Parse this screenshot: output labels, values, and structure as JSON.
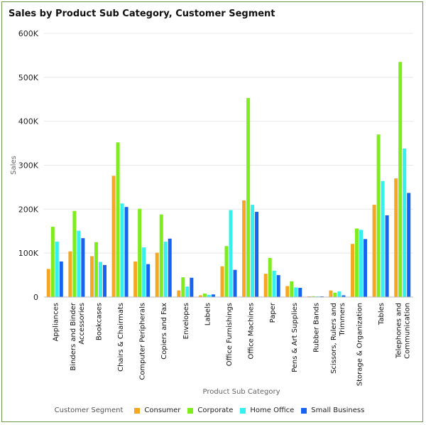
{
  "chart_data": {
    "type": "bar",
    "title": "Sales by Product Sub Category, Customer Segment",
    "xlabel": "Product Sub Category",
    "ylabel": "Sales",
    "ylim": [
      0,
      600000
    ],
    "yticks": [
      0,
      100000,
      200000,
      300000,
      400000,
      500000,
      600000
    ],
    "ytick_labels": [
      "0",
      "100K",
      "200K",
      "300K",
      "400K",
      "500K",
      "600K"
    ],
    "categories": [
      [
        "Appliances"
      ],
      [
        "Binders and Binder",
        "Accessories"
      ],
      [
        "Bookcases"
      ],
      [
        "Chairs & Chairmats"
      ],
      [
        "Computer Peripherals"
      ],
      [
        "Copiers and Fax"
      ],
      [
        "Envelopes"
      ],
      [
        "Labels"
      ],
      [
        "Office Furnishings"
      ],
      [
        "Office Machines"
      ],
      [
        "Paper"
      ],
      [
        "Pens & Art Supplies"
      ],
      [
        "Rubber Bands"
      ],
      [
        "Scissors, Rulers and",
        "Trimmers"
      ],
      [
        "Storage & Organization"
      ],
      [
        "Tables"
      ],
      [
        "Telephones and",
        "Communication"
      ]
    ],
    "legend_title": "Customer Segment",
    "series": [
      {
        "name": "Consumer",
        "color": "#f5a623",
        "values": [
          64000,
          104000,
          93000,
          276000,
          81000,
          101000,
          15000,
          4000,
          70000,
          220000,
          53000,
          25000,
          1000,
          15000,
          121000,
          210000,
          270000
        ]
      },
      {
        "name": "Corporate",
        "color": "#7fec1e",
        "values": [
          160000,
          196000,
          125000,
          352000,
          201000,
          188000,
          45000,
          8000,
          116000,
          453000,
          89000,
          36000,
          2000,
          10000,
          156000,
          370000,
          535000
        ]
      },
      {
        "name": "Home Office",
        "color": "#35f0ef",
        "values": [
          126000,
          151000,
          80000,
          213000,
          113000,
          126000,
          24000,
          5000,
          198000,
          210000,
          60000,
          22000,
          1500,
          13000,
          153000,
          264000,
          338000
        ]
      },
      {
        "name": "Small Business",
        "color": "#1663ef",
        "values": [
          81000,
          134000,
          73000,
          205000,
          75000,
          133000,
          44000,
          6000,
          62000,
          194000,
          50000,
          21000,
          1000,
          4000,
          132000,
          186000,
          237000
        ]
      }
    ]
  }
}
